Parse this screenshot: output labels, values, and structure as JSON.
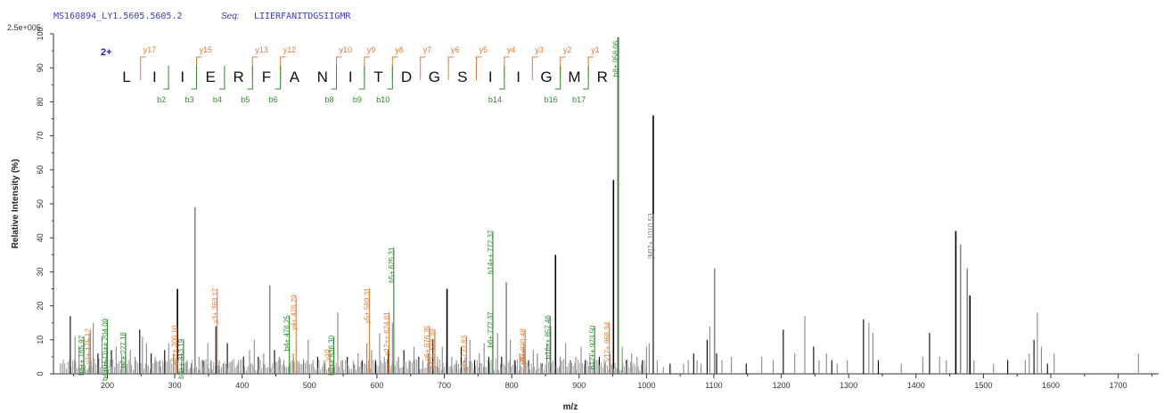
{
  "header": {
    "spectrum_id": "MS160894_LY1.5605.5605.2",
    "seq_label": "Seq:",
    "sequence_text": "LIIERFANITDGSIIGMR"
  },
  "annotation": {
    "charge": "2+",
    "residues": [
      "L",
      "I",
      "I",
      "E",
      "R",
      "F",
      "A",
      "N",
      "I",
      "T",
      "D",
      "G",
      "S",
      "I",
      "I",
      "G",
      "M",
      "R"
    ],
    "y_ions": [
      {
        "label": "y17",
        "after": 1
      },
      {
        "label": "y15",
        "after": 3
      },
      {
        "label": "y13",
        "after": 5
      },
      {
        "label": "y12",
        "after": 6
      },
      {
        "label": "y10",
        "after": 8
      },
      {
        "label": "y9",
        "after": 9
      },
      {
        "label": "y8",
        "after": 10
      },
      {
        "label": "y7",
        "after": 11
      },
      {
        "label": "y6",
        "after": 12
      },
      {
        "label": "y5",
        "after": 13
      },
      {
        "label": "y4",
        "after": 14
      },
      {
        "label": "y3",
        "after": 15
      },
      {
        "label": "y2",
        "after": 16
      },
      {
        "label": "y1",
        "after": 17
      }
    ],
    "b_ions": [
      {
        "label": "b2",
        "after": 2
      },
      {
        "label": "b3",
        "after": 3
      },
      {
        "label": "b4",
        "after": 4
      },
      {
        "label": "b5",
        "after": 5
      },
      {
        "label": "b6",
        "after": 6
      },
      {
        "label": "b8",
        "after": 8
      },
      {
        "label": "b9",
        "after": 9
      },
      {
        "label": "b10",
        "after": 10
      },
      {
        "label": "b14",
        "after": 14
      },
      {
        "label": "b16",
        "after": 16
      },
      {
        "label": "b17",
        "after": 17
      }
    ]
  },
  "colors": {
    "y": "#e07b39",
    "b": "#2e8b2e",
    "peak": "#000000",
    "peak_minor": "#8a8a8a",
    "other": "#777777",
    "axis": "#333333"
  },
  "chart_data": {
    "type": "bar",
    "title": "",
    "xlabel": "m/z",
    "ylabel": "Relative Intensity (%)",
    "xlim": [
      120,
      1760
    ],
    "ylim": [
      0,
      100
    ],
    "y_scale_label": "2.5e+005",
    "xticks": [
      200,
      300,
      400,
      500,
      600,
      700,
      800,
      900,
      1000,
      1100,
      1200,
      1300,
      1400,
      1500,
      1600,
      1700
    ],
    "yticks": [
      0,
      10,
      20,
      30,
      40,
      50,
      60,
      70,
      80,
      90,
      100
    ],
    "peaks": [
      [
        145,
        17
      ],
      [
        152,
        11
      ],
      [
        158,
        8
      ],
      [
        165,
        10
      ],
      [
        173,
        12
      ],
      [
        179,
        15
      ],
      [
        186,
        6
      ],
      [
        192,
        11
      ],
      [
        199,
        9
      ],
      [
        206,
        7
      ],
      [
        213,
        8
      ],
      [
        221,
        6
      ],
      [
        227,
        5
      ],
      [
        234,
        7
      ],
      [
        241,
        5
      ],
      [
        248,
        13
      ],
      [
        252,
        11
      ],
      [
        258,
        9
      ],
      [
        265,
        6
      ],
      [
        271,
        5
      ],
      [
        278,
        4
      ],
      [
        285,
        7
      ],
      [
        291,
        9
      ],
      [
        298,
        6
      ],
      [
        304,
        25
      ],
      [
        310,
        6
      ],
      [
        318,
        4
      ],
      [
        325,
        3
      ],
      [
        330,
        49
      ],
      [
        336,
        5
      ],
      [
        342,
        4
      ],
      [
        349,
        9
      ],
      [
        354,
        4
      ],
      [
        361,
        14
      ],
      [
        366,
        4
      ],
      [
        372,
        3
      ],
      [
        378,
        9
      ],
      [
        385,
        4
      ],
      [
        394,
        3
      ],
      [
        402,
        5
      ],
      [
        411,
        7
      ],
      [
        418,
        10
      ],
      [
        424,
        5
      ],
      [
        432,
        6
      ],
      [
        441,
        26
      ],
      [
        448,
        7
      ],
      [
        455,
        5
      ],
      [
        462,
        4
      ],
      [
        470,
        3
      ],
      [
        476,
        6
      ],
      [
        484,
        3
      ],
      [
        491,
        4
      ],
      [
        498,
        10
      ],
      [
        505,
        4
      ],
      [
        512,
        5
      ],
      [
        522,
        3
      ],
      [
        530,
        6
      ],
      [
        536,
        8
      ],
      [
        542,
        18
      ],
      [
        549,
        4
      ],
      [
        556,
        5
      ],
      [
        566,
        3
      ],
      [
        572,
        6
      ],
      [
        578,
        4
      ],
      [
        585,
        9
      ],
      [
        592,
        7
      ],
      [
        598,
        4
      ],
      [
        604,
        12
      ],
      [
        611,
        5
      ],
      [
        617,
        7
      ],
      [
        623,
        15
      ],
      [
        632,
        5
      ],
      [
        640,
        7
      ],
      [
        648,
        4
      ],
      [
        655,
        8
      ],
      [
        662,
        5
      ],
      [
        668,
        4
      ],
      [
        676,
        6
      ],
      [
        683,
        10
      ],
      [
        690,
        5
      ],
      [
        697,
        8
      ],
      [
        704,
        25
      ],
      [
        711,
        5
      ],
      [
        718,
        4
      ],
      [
        725,
        8
      ],
      [
        731,
        5
      ],
      [
        738,
        10
      ],
      [
        745,
        4
      ],
      [
        752,
        6
      ],
      [
        759,
        9
      ],
      [
        766,
        5
      ],
      [
        772,
        8
      ],
      [
        779,
        12
      ],
      [
        785,
        5
      ],
      [
        792,
        27
      ],
      [
        798,
        10
      ],
      [
        805,
        4
      ],
      [
        812,
        6
      ],
      [
        818,
        9
      ],
      [
        825,
        4
      ],
      [
        832,
        7
      ],
      [
        838,
        6
      ],
      [
        845,
        3
      ],
      [
        852,
        9
      ],
      [
        858,
        14
      ],
      [
        865,
        35
      ],
      [
        872,
        5
      ],
      [
        880,
        9
      ],
      [
        887,
        4
      ],
      [
        895,
        5
      ],
      [
        903,
        8
      ],
      [
        909,
        4
      ],
      [
        916,
        6
      ],
      [
        923,
        4
      ],
      [
        930,
        5
      ],
      [
        938,
        3
      ],
      [
        946,
        6
      ],
      [
        951,
        57
      ],
      [
        958,
        99
      ],
      [
        964,
        8
      ],
      [
        970,
        4
      ],
      [
        978,
        6
      ],
      [
        986,
        5
      ],
      [
        994,
        4
      ],
      [
        1000,
        8
      ],
      [
        1004,
        9
      ],
      [
        1010,
        76
      ],
      [
        1016,
        4
      ],
      [
        1025,
        2
      ],
      [
        1035,
        3
      ],
      [
        1055,
        3
      ],
      [
        1062,
        4
      ],
      [
        1070,
        6
      ],
      [
        1075,
        4
      ],
      [
        1081,
        3
      ],
      [
        1090,
        10
      ],
      [
        1094,
        14
      ],
      [
        1101,
        31
      ],
      [
        1104,
        6
      ],
      [
        1112,
        4
      ],
      [
        1126,
        5
      ],
      [
        1148,
        3
      ],
      [
        1171,
        5
      ],
      [
        1188,
        4
      ],
      [
        1203,
        13
      ],
      [
        1220,
        6
      ],
      [
        1235,
        17
      ],
      [
        1248,
        8
      ],
      [
        1256,
        4
      ],
      [
        1267,
        6
      ],
      [
        1275,
        4
      ],
      [
        1283,
        3
      ],
      [
        1298,
        4
      ],
      [
        1322,
        16
      ],
      [
        1330,
        15
      ],
      [
        1336,
        12
      ],
      [
        1344,
        4
      ],
      [
        1378,
        3
      ],
      [
        1410,
        5
      ],
      [
        1420,
        12
      ],
      [
        1435,
        5
      ],
      [
        1445,
        4
      ],
      [
        1459,
        42
      ],
      [
        1466,
        38
      ],
      [
        1476,
        31
      ],
      [
        1480,
        23
      ],
      [
        1486,
        4
      ],
      [
        1515,
        3
      ],
      [
        1536,
        4
      ],
      [
        1562,
        4
      ],
      [
        1568,
        6
      ],
      [
        1575,
        10
      ],
      [
        1580,
        18
      ],
      [
        1586,
        8
      ],
      [
        1595,
        3
      ],
      [
        1605,
        6
      ],
      [
        1730,
        6
      ]
    ],
    "labeled_peaks": [
      {
        "mz": 165,
        "height": 11,
        "label": "b3++ 165.97",
        "type": "b"
      },
      {
        "mz": 175,
        "height": 13,
        "label": "y1+ 175.12",
        "type": "y"
      },
      {
        "mz": 200,
        "height": 16,
        "label": "b4+(H₂O)++ 204.09",
        "type": "b"
      },
      {
        "mz": 227,
        "height": 12,
        "label": "b2+ 227.18",
        "type": "b"
      },
      {
        "mz": 313,
        "height": 10,
        "label": "b5++ 313.19",
        "type": "b"
      },
      {
        "mz": 303,
        "height": 14,
        "label": "y5++ 300.10",
        "type": "y"
      },
      {
        "mz": 363,
        "height": 25,
        "label": "y3+ 363.17",
        "type": "y"
      },
      {
        "mz": 470,
        "height": 17,
        "label": "b4+ 476.25",
        "type": "b"
      },
      {
        "mz": 480,
        "height": 23,
        "label": "y4+ 476.29",
        "type": "y"
      },
      {
        "mz": 536,
        "height": 11,
        "label": "b9++ 536.30",
        "type": "b"
      },
      {
        "mz": 530,
        "height": 7,
        "label": "y10",
        "type": "y"
      },
      {
        "mz": 589,
        "height": 25,
        "label": "y5+ 589.31",
        "type": "y"
      },
      {
        "mz": 625,
        "height": 37,
        "label": "b5+ 625.31",
        "type": "b"
      },
      {
        "mz": 618,
        "height": 18,
        "label": "y12++ 624.81",
        "type": "y"
      },
      {
        "mz": 678,
        "height": 14,
        "label": "y6+ 676.35",
        "type": "y"
      },
      {
        "mz": 686,
        "height": 13,
        "label": "y13+ 686.39",
        "type": "y"
      },
      {
        "mz": 733,
        "height": 11,
        "label": "y7+ 733.83",
        "type": "y"
      },
      {
        "mz": 772,
        "height": 42,
        "label": "b14++ 772.37",
        "type": "b"
      },
      {
        "mz": 772,
        "height": 18,
        "label": "b6+ 772.37",
        "type": "b"
      },
      {
        "mz": 820,
        "height": 13,
        "label": "y8+ 820.48",
        "type": "y"
      },
      {
        "mz": 857,
        "height": 17,
        "label": "b16++ 857.46",
        "type": "b"
      },
      {
        "mz": 820,
        "height": 7,
        "label": "y8++",
        "type": "y"
      },
      {
        "mz": 923,
        "height": 14,
        "label": "b17++ 923.50",
        "type": "b"
      },
      {
        "mz": 958,
        "height": 99,
        "label": "b8+ 958.06",
        "type": "b"
      },
      {
        "mz": 945,
        "height": 15,
        "label": "y17+ 968.94",
        "type": "y"
      },
      {
        "mz": 1010,
        "height": 47,
        "label": "[M]2+ 1010.53",
        "type": "other"
      }
    ]
  }
}
